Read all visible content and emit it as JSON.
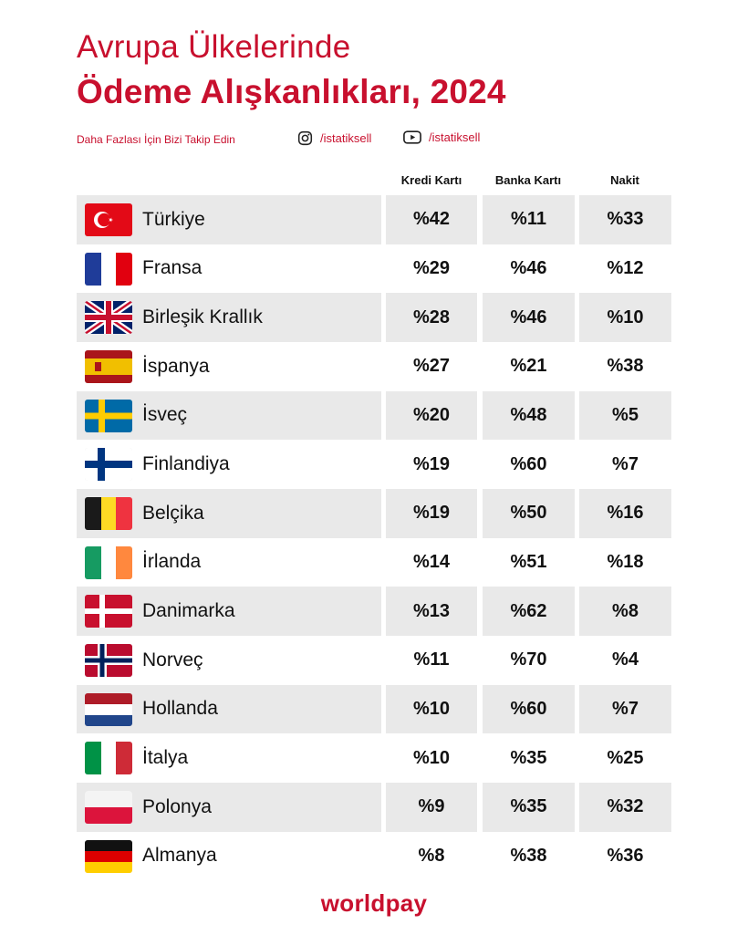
{
  "header": {
    "title_line1": "Avrupa Ülkelerinde",
    "title_line2": "Ödeme Alışkanlıkları, 2024",
    "follow_text": "Daha  Fazlası İçin Bizi Takip Edin",
    "instagram": {
      "icon": "instagram-icon",
      "handle": "/istatiksell"
    },
    "youtube": {
      "icon": "youtube-icon",
      "handle": "/istatiksell"
    }
  },
  "chart_data": {
    "type": "table",
    "columns": [
      "Kredi Kartı",
      "Banka Kartı",
      "Nakit"
    ],
    "rows": [
      {
        "country": "Türkiye",
        "flag": "flag-turkey",
        "values": [
          "%42",
          "%11",
          "%33"
        ]
      },
      {
        "country": "Fransa",
        "flag": "flag-france",
        "values": [
          "%29",
          "%46",
          "%12"
        ]
      },
      {
        "country": "Birleşik Krallık",
        "flag": "flag-uk",
        "values": [
          "%28",
          "%46",
          "%10"
        ]
      },
      {
        "country": "İspanya",
        "flag": "flag-spain",
        "values": [
          "%27",
          "%21",
          "%38"
        ]
      },
      {
        "country": "İsveç",
        "flag": "flag-sweden",
        "values": [
          "%20",
          "%48",
          "%5"
        ]
      },
      {
        "country": "Finlandiya",
        "flag": "flag-finland",
        "values": [
          "%19",
          "%60",
          "%7"
        ]
      },
      {
        "country": "Belçika",
        "flag": "flag-belgium",
        "values": [
          "%19",
          "%50",
          "%16"
        ]
      },
      {
        "country": "İrlanda",
        "flag": "flag-ireland",
        "values": [
          "%14",
          "%51",
          "%18"
        ]
      },
      {
        "country": "Danimarka",
        "flag": "flag-denmark",
        "values": [
          "%13",
          "%62",
          "%8"
        ]
      },
      {
        "country": "Norveç",
        "flag": "flag-norway",
        "values": [
          "%11",
          "%70",
          "%4"
        ]
      },
      {
        "country": "Hollanda",
        "flag": "flag-netherlands",
        "values": [
          "%10",
          "%60",
          "%7"
        ]
      },
      {
        "country": "İtalya",
        "flag": "flag-italy",
        "values": [
          "%10",
          "%35",
          "%25"
        ]
      },
      {
        "country": "Polonya",
        "flag": "flag-poland",
        "values": [
          "%9",
          "%35",
          "%32"
        ]
      },
      {
        "country": "Almanya",
        "flag": "flag-germany",
        "values": [
          "%8",
          "%38",
          "%36"
        ]
      }
    ],
    "row_shading": "alternating",
    "shade_color": "#e9e9e9"
  },
  "footer": {
    "brand": "worldpay"
  },
  "colors": {
    "accent": "#c8102e",
    "text": "#111111",
    "background": "#ffffff"
  }
}
